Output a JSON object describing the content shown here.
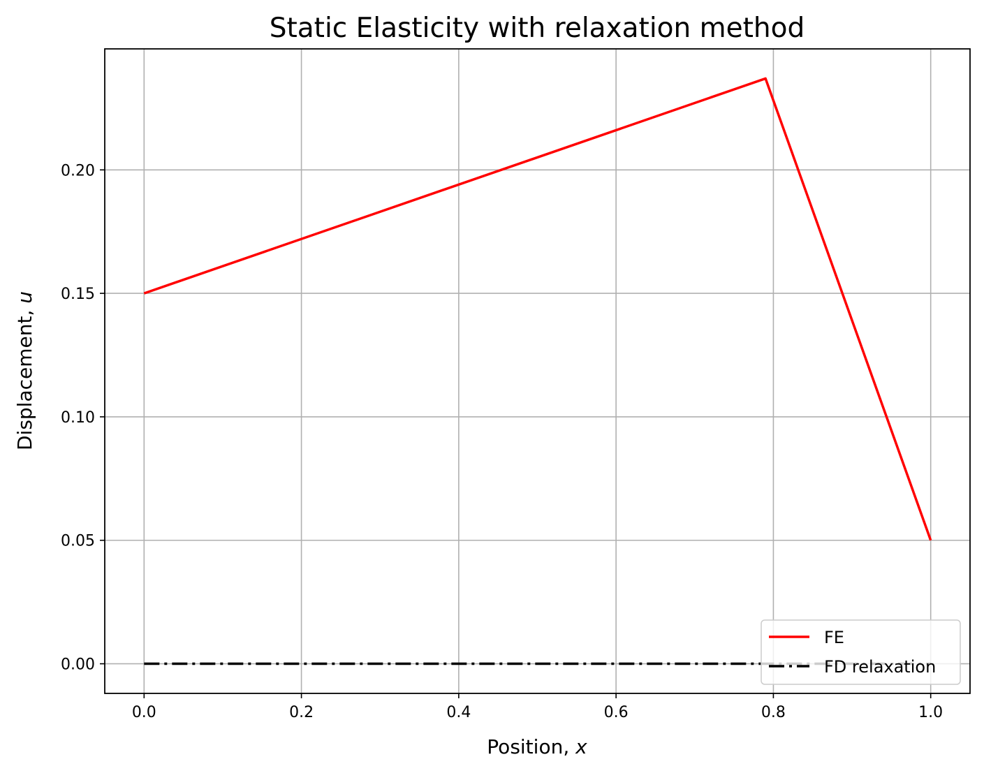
{
  "chart_data": {
    "type": "line",
    "title": "Static Elasticity with relaxation method",
    "xlabel": "Position, ",
    "xlabel_var": "x",
    "ylabel": "Displacement, ",
    "ylabel_var": "u",
    "xlim": [
      -0.05,
      1.05
    ],
    "ylim": [
      -0.012,
      0.249
    ],
    "x_ticks": [
      0.0,
      0.2,
      0.4,
      0.6,
      0.8,
      1.0
    ],
    "x_tick_labels": [
      "0.0",
      "0.2",
      "0.4",
      "0.6",
      "0.8",
      "1.0"
    ],
    "y_ticks": [
      0.0,
      0.05,
      0.1,
      0.15,
      0.2
    ],
    "y_tick_labels": [
      "0.00",
      "0.05",
      "0.10",
      "0.15",
      "0.20"
    ],
    "grid": true,
    "legend_position": "lower right",
    "series": [
      {
        "name": "FE",
        "color": "#ff0000",
        "line_style": "solid",
        "x": [
          0.0,
          0.79,
          1.0
        ],
        "y": [
          0.15,
          0.237,
          0.05
        ]
      },
      {
        "name": "FD relaxation",
        "color": "#000000",
        "line_style": "dashdot",
        "x": [
          0.0,
          0.1,
          0.2,
          0.3,
          0.4,
          0.5,
          0.6,
          0.7,
          0.8,
          0.9,
          1.0
        ],
        "y": [
          0,
          0,
          0,
          0,
          0,
          0,
          0,
          0,
          0,
          0,
          0
        ]
      }
    ]
  }
}
